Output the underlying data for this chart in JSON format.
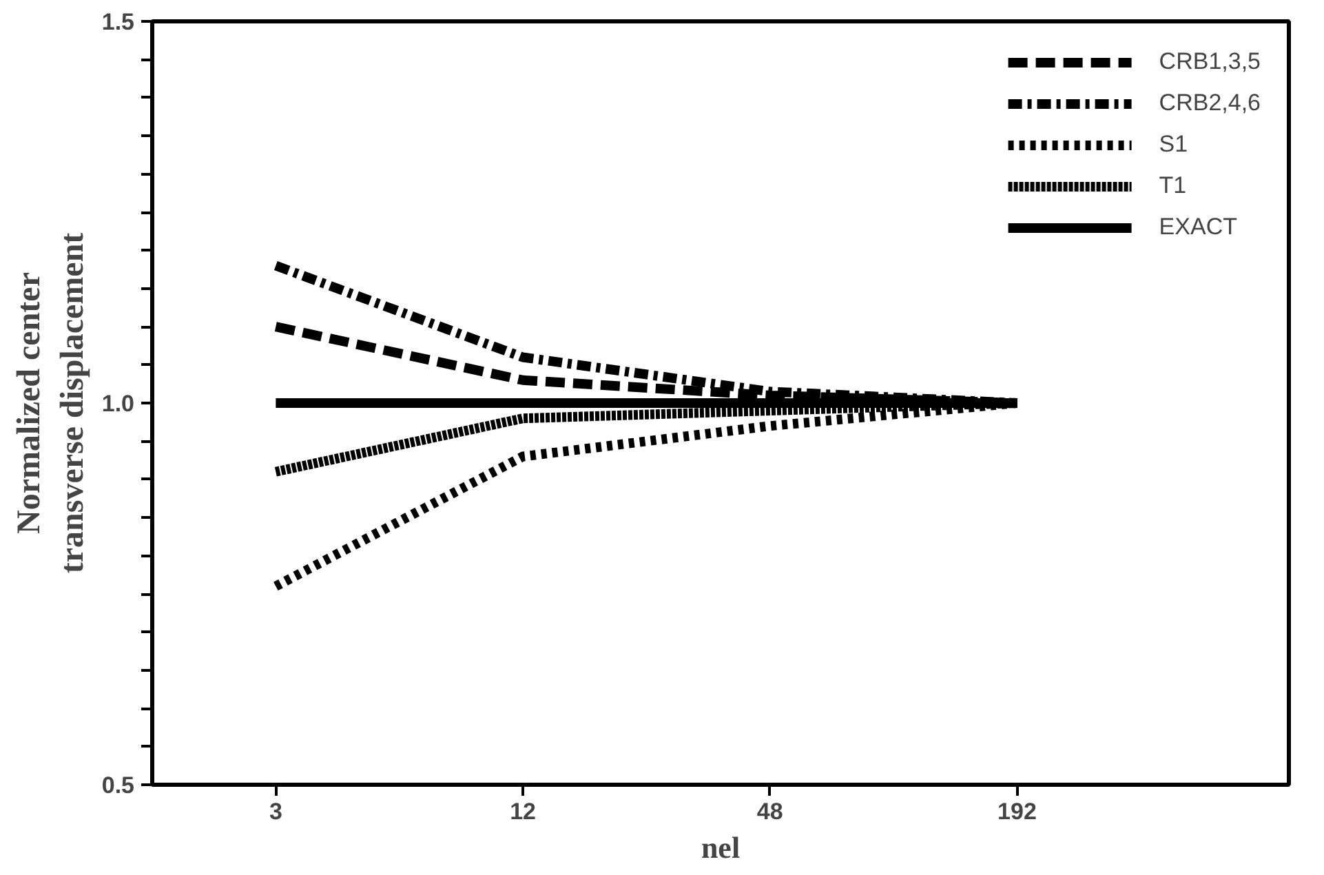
{
  "chart_data": {
    "type": "line",
    "xlabel": "nel",
    "ylabel": "Normalized center\ntransverse displacement",
    "categories": [
      "3",
      "12",
      "48",
      "192"
    ],
    "ylim": [
      0.5,
      1.5
    ],
    "yticks": [
      {
        "value": 0.5,
        "label": "0.5"
      },
      {
        "value": 0.55,
        "label": null
      },
      {
        "value": 0.6,
        "label": null
      },
      {
        "value": 0.65,
        "label": null
      },
      {
        "value": 0.7,
        "label": null
      },
      {
        "value": 0.75,
        "label": null
      },
      {
        "value": 0.8,
        "label": null
      },
      {
        "value": 0.85,
        "label": null
      },
      {
        "value": 0.9,
        "label": null
      },
      {
        "value": 0.95,
        "label": null
      },
      {
        "value": 1.0,
        "label": "1.0"
      },
      {
        "value": 1.05,
        "label": null
      },
      {
        "value": 1.1,
        "label": null
      },
      {
        "value": 1.15,
        "label": null
      },
      {
        "value": 1.2,
        "label": null
      },
      {
        "value": 1.25,
        "label": null
      },
      {
        "value": 1.3,
        "label": null
      },
      {
        "value": 1.35,
        "label": null
      },
      {
        "value": 1.4,
        "label": null
      },
      {
        "value": 1.45,
        "label": null
      },
      {
        "value": 1.5,
        "label": "1.5"
      }
    ],
    "grid": false,
    "legend": "top right",
    "marker": "none",
    "series": [
      {
        "name": "CRB1,3,5",
        "color": "#000000",
        "line_style": "dashed",
        "values": [
          1.1,
          1.03,
          1.01,
          1.0
        ]
      },
      {
        "name": "CRB2,4,6",
        "color": "#000000",
        "line_style": "dashdot",
        "values": [
          1.18,
          1.06,
          1.015,
          1.0
        ]
      },
      {
        "name": "S1",
        "color": "#000000",
        "line_style": "dotted",
        "values": [
          0.76,
          0.93,
          0.97,
          1.0
        ]
      },
      {
        "name": "T1",
        "color": "#000000",
        "line_style": "densely dotted",
        "values": [
          0.91,
          0.98,
          0.99,
          1.0
        ]
      },
      {
        "name": "EXACT",
        "color": "#000000",
        "line_style": "solid",
        "values": [
          1.0,
          1.0,
          1.0,
          1.0
        ]
      }
    ]
  }
}
